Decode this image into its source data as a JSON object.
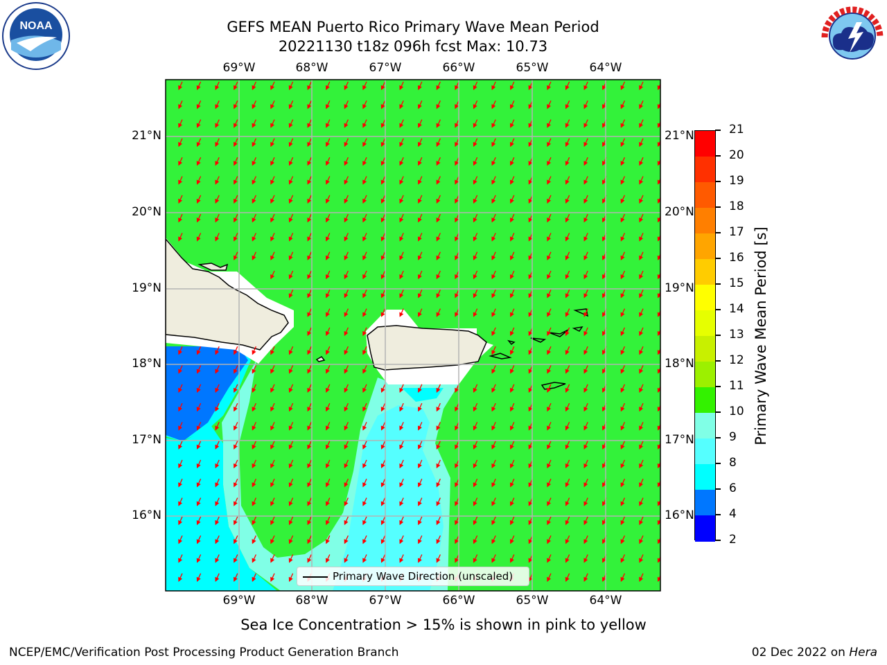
{
  "title": {
    "line1": "GEFS MEAN Puerto Rico Primary Wave Mean Period",
    "line2": "20221130 t18z 096h fcst   Max: 10.73"
  },
  "logos": {
    "left": "noaa-logo",
    "right": "national-weather-service-logo"
  },
  "map": {
    "lon_labels": [
      "69°W",
      "68°W",
      "67°W",
      "66°W",
      "65°W",
      "64°W"
    ],
    "lat_labels": [
      "21°N",
      "20°N",
      "19°N",
      "18°N",
      "17°N",
      "16°N"
    ],
    "colors": {
      "sea_green": "#33f23a",
      "land": "#efedde",
      "cyan": "#00ffff",
      "light_cyan": "#80ffe6",
      "mid_cyan": "#55ffff",
      "blue": "#0077ff",
      "arrow": "#ff0000",
      "grid": "#b3b3b3"
    },
    "arrow_direction": "toward SSW"
  },
  "colorbar": {
    "title": "Primary Wave Mean Period [s]",
    "ticks": [
      "21",
      "20",
      "19",
      "18",
      "17",
      "16",
      "15",
      "14",
      "13",
      "12",
      "11",
      "10",
      "9",
      "8",
      "6",
      "4",
      "2"
    ],
    "colors": [
      "#ff0000",
      "#ff3000",
      "#ff5a00",
      "#ff7f00",
      "#ffa500",
      "#ffcc00",
      "#ffff00",
      "#e6ff00",
      "#c8f000",
      "#9cf000",
      "#33f200",
      "#33f23a",
      "#80ffe6",
      "#55ffff",
      "#00ffff",
      "#0077ff",
      "#0000ff"
    ]
  },
  "legend": {
    "label": "Primary Wave Direction (unscaled)"
  },
  "caption": "Sea Ice Concentration > 15% is shown in pink to yellow",
  "footer": {
    "left": "NCEP/EMC/Verification Post Processing Product Generation Branch",
    "date": "02 Dec 2022 on ",
    "machine": "Hera"
  }
}
